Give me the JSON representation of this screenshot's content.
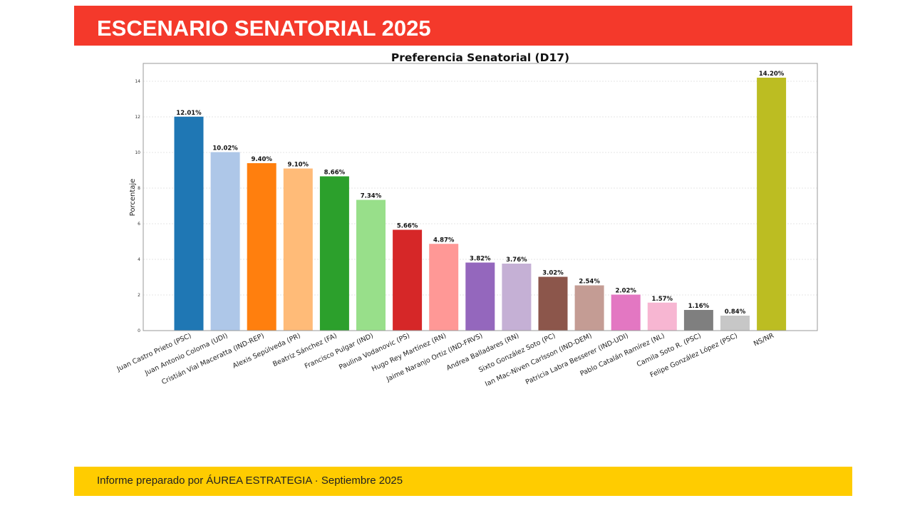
{
  "header": {
    "title": "ESCENARIO SENATORIAL 2025"
  },
  "footer": {
    "text": "Informe preparado por ÁUREA ESTRATEGIA · Septiembre 2025"
  },
  "chart_data": {
    "type": "bar",
    "title": "Preferencia Senatorial (D17)",
    "xlabel": "",
    "ylabel": "Porcentaje",
    "ylim": [
      0,
      15
    ],
    "yticks": [
      0,
      2,
      4,
      6,
      8,
      10,
      12,
      14
    ],
    "grid": true,
    "categories": [
      "Juan Castro Prieto (PSC)",
      "Juan Antonio Coloma (UDI)",
      "Cristián Vial Maceratta (IND-REP)",
      "Alexis Sepúlveda (PR)",
      "Beatriz Sánchez (FA)",
      "Francisco Pulgar (IND)",
      "Paulina Vodanovic (PS)",
      "Hugo Rey Martínez (RN)",
      "Jaime Naranjo Ortiz (IND-FRVS)",
      "Andrea Balladares (RN)",
      "Sixto González Soto (PC)",
      "Ian Mac-Niven Carlsson (IND-DEM)",
      "Patricia Labra Besserer (IND-UDI)",
      "Pablo Catalán Ramírez (NL)",
      "Camila Soto R. (PSC)",
      "Felipe González López (PSC)",
      "NS/NR"
    ],
    "values": [
      12.01,
      10.02,
      9.4,
      9.1,
      8.66,
      7.34,
      5.66,
      4.87,
      3.82,
      3.76,
      3.02,
      2.54,
      2.02,
      1.57,
      1.16,
      0.84,
      14.2
    ],
    "data_labels": [
      "12.01%",
      "10.02%",
      "9.40%",
      "9.10%",
      "8.66%",
      "7.34%",
      "5.66%",
      "4.87%",
      "3.82%",
      "3.76%",
      "3.02%",
      "2.54%",
      "2.02%",
      "1.57%",
      "1.16%",
      "0.84%",
      "14.20%"
    ],
    "colors": [
      "#1f77b4",
      "#aec7e8",
      "#ff7f0e",
      "#ffbb78",
      "#2ca02c",
      "#98df8a",
      "#d62728",
      "#ff9896",
      "#9467bd",
      "#c5b0d5",
      "#8c564b",
      "#c49c94",
      "#e377c2",
      "#f7b6d2",
      "#7f7f7f",
      "#c7c7c7",
      "#bcbd22"
    ]
  }
}
